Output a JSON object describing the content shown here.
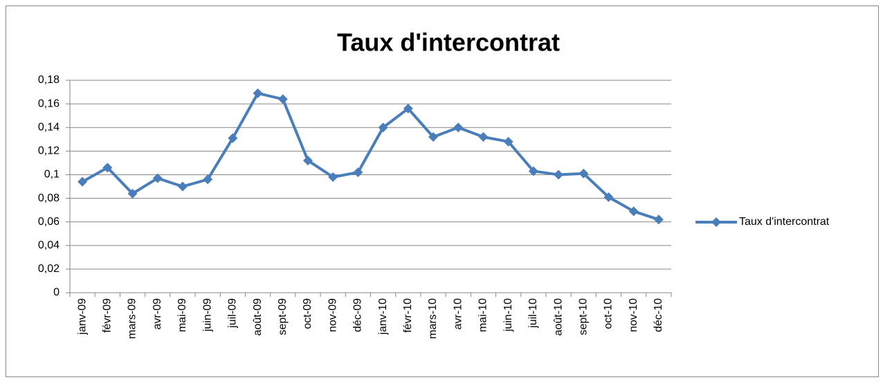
{
  "chart_data": {
    "type": "line",
    "title": "Taux d'intercontrat",
    "categories": [
      "janv-09",
      "févr-09",
      "mars-09",
      "avr-09",
      "mai-09",
      "juin-09",
      "juil-09",
      "août-09",
      "sept-09",
      "oct-09",
      "nov-09",
      "déc-09",
      "janv-10",
      "févr-10",
      "mars-10",
      "avr-10",
      "mai-10",
      "juin-10",
      "juil-10",
      "août-10",
      "sept-10",
      "oct-10",
      "nov-10",
      "déc-10"
    ],
    "series": [
      {
        "name": "Taux d'intercontrat",
        "color": "#4a7ebb",
        "values": [
          0.094,
          0.106,
          0.084,
          0.097,
          0.09,
          0.096,
          0.131,
          0.169,
          0.164,
          0.112,
          0.098,
          0.102,
          0.14,
          0.156,
          0.132,
          0.14,
          0.132,
          0.128,
          0.103,
          0.1,
          0.101,
          0.081,
          0.069,
          0.062
        ]
      }
    ],
    "ylim": [
      0,
      0.18
    ],
    "yticks": [
      0,
      {
        "value": 0.02,
        "label": "0,02"
      },
      {
        "value": 0.04,
        "label": "0,04"
      },
      {
        "value": 0.06,
        "label": "0,06"
      },
      {
        "value": 0.08,
        "label": "0,08"
      },
      {
        "value": 0.1,
        "label": "0,1"
      },
      {
        "value": 0.12,
        "label": "0,12"
      },
      {
        "value": 0.14,
        "label": "0,14"
      },
      {
        "value": 0.16,
        "label": "0,16"
      },
      {
        "value": 0.18,
        "label": "0,18"
      }
    ],
    "grid": true,
    "legend": "right"
  }
}
